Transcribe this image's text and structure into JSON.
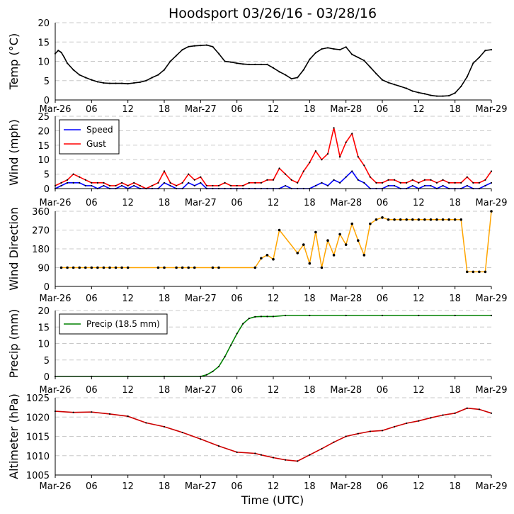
{
  "chart_data": {
    "title": "Hoodsport 03/26/16 - 03/28/16",
    "xlabel": "Time (UTC)",
    "x_ticks": [
      "Mar-26",
      "06",
      "12",
      "18",
      "Mar-27",
      "06",
      "12",
      "18",
      "Mar-28",
      "06",
      "12",
      "18",
      "Mar-29"
    ],
    "x_range_hours": [
      0,
      72
    ],
    "panels": [
      {
        "type": "line",
        "ylabel": "Temp (°C)",
        "ylim": [
          0,
          20
        ],
        "yticks": [
          0,
          5,
          10,
          15,
          20
        ],
        "series": [
          {
            "name": "Temp",
            "color": "#000000",
            "x": [
              0,
              0.5,
              1,
              1.5,
              2,
              3,
              4,
              5,
              6,
              7,
              8,
              9,
              10,
              11,
              12,
              13,
              14,
              15,
              16,
              17,
              18,
              19,
              20,
              21,
              22,
              23,
              24,
              25,
              26,
              27,
              28,
              29,
              30,
              31,
              32,
              33,
              34,
              35,
              36,
              37,
              38,
              39,
              40,
              41,
              42,
              43,
              44,
              45,
              46,
              47,
              48,
              49,
              50,
              51,
              52,
              53,
              54,
              55,
              56,
              57,
              58,
              59,
              60,
              61,
              62,
              63,
              64,
              65,
              66,
              67,
              68,
              69,
              70,
              71,
              72
            ],
            "y": [
              12,
              12.8,
              12.3,
              11,
              9.5,
              7.8,
              6.5,
              5.8,
              5.2,
              4.7,
              4.4,
              4.3,
              4.3,
              4.3,
              4.2,
              4.4,
              4.6,
              5.0,
              5.8,
              6.5,
              7.8,
              10,
              11.5,
              13,
              13.8,
              14,
              14.1,
              14.2,
              13.8,
              12,
              10,
              9.8,
              9.5,
              9.3,
              9.2,
              9.2,
              9.2,
              9.2,
              8.3,
              7.3,
              6.5,
              5.5,
              5.8,
              7.8,
              10.5,
              12.2,
              13.2,
              13.5,
              13.2,
              13,
              13.7,
              11.8,
              11,
              10.2,
              8.5,
              6.8,
              5.2,
              4.5,
              4,
              3.5,
              3,
              2.3,
              1.9,
              1.6,
              1.2,
              1.0,
              1.0,
              1.1,
              1.8,
              3.5,
              6,
              9.5,
              11,
              12.8,
              13
            ]
          }
        ]
      },
      {
        "type": "line",
        "ylabel": "Wind (mph)",
        "ylim": [
          0,
          25
        ],
        "yticks": [
          0,
          5,
          10,
          15,
          20,
          25
        ],
        "legend": "top-left",
        "series": [
          {
            "name": "Speed",
            "color": "#0000ff",
            "x": [
              0,
              1,
              2,
              3,
              4,
              5,
              6,
              7,
              8,
              9,
              10,
              11,
              12,
              13,
              14,
              15,
              16,
              17,
              18,
              19,
              20,
              21,
              22,
              23,
              24,
              25,
              26,
              27,
              28,
              29,
              30,
              31,
              32,
              33,
              34,
              35,
              36,
              37,
              38,
              39,
              40,
              41,
              42,
              43,
              44,
              45,
              46,
              47,
              48,
              49,
              50,
              51,
              52,
              53,
              54,
              55,
              56,
              57,
              58,
              59,
              60,
              61,
              62,
              63,
              64,
              65,
              66,
              67,
              68,
              69,
              70,
              71,
              72
            ],
            "y": [
              0,
              1,
              2,
              2,
              2,
              1,
              1,
              0,
              1,
              0,
              0,
              1,
              0,
              1,
              0,
              0,
              0,
              0,
              2,
              1,
              0,
              0,
              2,
              1,
              2,
              0,
              0,
              0,
              0,
              0,
              0,
              0,
              0,
              0,
              0,
              0,
              0,
              0,
              1,
              0,
              0,
              0,
              0,
              1,
              2,
              1,
              3,
              2,
              4,
              6,
              3,
              2,
              0,
              0,
              0,
              1,
              1,
              0,
              0,
              1,
              0,
              1,
              1,
              0,
              1,
              0,
              0,
              0,
              1,
              0,
              0,
              1,
              2
            ]
          },
          {
            "name": "Gust",
            "color": "#ff0000",
            "x": [
              0,
              1,
              2,
              3,
              4,
              5,
              6,
              7,
              8,
              9,
              10,
              11,
              12,
              13,
              14,
              15,
              16,
              17,
              18,
              19,
              20,
              21,
              22,
              23,
              24,
              25,
              26,
              27,
              28,
              29,
              30,
              31,
              32,
              33,
              34,
              35,
              36,
              37,
              38,
              39,
              40,
              41,
              42,
              43,
              44,
              45,
              46,
              47,
              48,
              49,
              50,
              51,
              52,
              53,
              54,
              55,
              56,
              57,
              58,
              59,
              60,
              61,
              62,
              63,
              64,
              65,
              66,
              67,
              68,
              69,
              70,
              71,
              72
            ],
            "y": [
              1,
              2,
              3,
              5,
              4,
              3,
              2,
              2,
              2,
              1,
              1,
              2,
              1,
              2,
              1,
              0,
              1,
              2,
              6,
              2,
              1,
              2,
              5,
              3,
              4,
              1,
              1,
              1,
              2,
              1,
              1,
              1,
              2,
              2,
              2,
              3,
              3,
              7,
              5,
              3,
              2,
              6,
              9,
              13,
              10,
              12,
              21,
              11,
              16,
              19,
              11,
              8,
              4,
              2,
              2,
              3,
              3,
              2,
              2,
              3,
              2,
              3,
              3,
              2,
              3,
              2,
              2,
              2,
              4,
              2,
              2,
              3,
              6
            ]
          }
        ]
      },
      {
        "type": "scatter",
        "ylabel": "Wind Direction",
        "ylim": [
          0,
          360
        ],
        "yticks": [
          0,
          90,
          180,
          270,
          360
        ],
        "series": [
          {
            "name": "Direction",
            "color": "#ffa500",
            "x": [
              1,
              2,
              3,
              4,
              5,
              6,
              7,
              8,
              9,
              10,
              11,
              12,
              17,
              18,
              20,
              21,
              22,
              23,
              26,
              27,
              33,
              34,
              35,
              36,
              37,
              40,
              41,
              42,
              43,
              44,
              45,
              46,
              47,
              48,
              49,
              50,
              51,
              52,
              53,
              54,
              55,
              56,
              57,
              58,
              59,
              60,
              61,
              62,
              63,
              64,
              65,
              66,
              67,
              68,
              69,
              70,
              71,
              72
            ],
            "y": [
              90,
              90,
              90,
              90,
              90,
              90,
              90,
              90,
              90,
              90,
              90,
              90,
              90,
              90,
              90,
              90,
              90,
              90,
              90,
              90,
              90,
              135,
              150,
              130,
              270,
              160,
              200,
              110,
              260,
              90,
              220,
              150,
              250,
              200,
              300,
              220,
              150,
              300,
              320,
              330,
              320,
              320,
              320,
              320,
              320,
              320,
              320,
              320,
              320,
              320,
              320,
              320,
              320,
              70,
              70,
              70,
              70,
              360
            ]
          }
        ]
      },
      {
        "type": "line",
        "ylabel": "Precip (mm)",
        "ylim": [
          0,
          20
        ],
        "yticks": [
          0,
          5,
          10,
          15,
          20
        ],
        "legend": "top-left",
        "series": [
          {
            "name": "Precip (18.5 mm)",
            "color": "#008000",
            "x": [
              0,
              6,
              12,
              18,
              24,
              25,
              26,
              27,
              28,
              29,
              30,
              31,
              32,
              33,
              34,
              35,
              36,
              38,
              42,
              48,
              54,
              60,
              66,
              72
            ],
            "y": [
              0,
              0,
              0,
              0,
              0,
              0.5,
              1.5,
              3,
              6,
              9.5,
              13,
              16,
              17.6,
              18.1,
              18.2,
              18.2,
              18.2,
              18.5,
              18.5,
              18.5,
              18.5,
              18.5,
              18.5,
              18.5
            ]
          }
        ]
      },
      {
        "type": "line",
        "ylabel": "Altimeter (hPa)",
        "ylim": [
          1005,
          1025
        ],
        "yticks": [
          1005,
          1010,
          1015,
          1020,
          1025
        ],
        "series": [
          {
            "name": "Altimeter",
            "color": "#cc0000",
            "x": [
              0,
              3,
              6,
              9,
              12,
              15,
              18,
              21,
              24,
              27,
              30,
              33,
              34,
              36,
              38,
              40,
              42,
              44,
              46,
              48,
              50,
              52,
              54,
              56,
              58,
              60,
              62,
              64,
              66,
              68,
              70,
              72
            ],
            "y": [
              1021.5,
              1021.2,
              1021.3,
              1020.8,
              1020.2,
              1018.5,
              1017.5,
              1016,
              1014.3,
              1012.5,
              1010.9,
              1010.6,
              1010.2,
              1009.5,
              1008.9,
              1008.6,
              1010.2,
              1011.8,
              1013.5,
              1015,
              1015.7,
              1016.3,
              1016.5,
              1017.5,
              1018.4,
              1019,
              1019.8,
              1020.5,
              1021,
              1022.3,
              1022,
              1021
            ]
          }
        ]
      }
    ]
  }
}
